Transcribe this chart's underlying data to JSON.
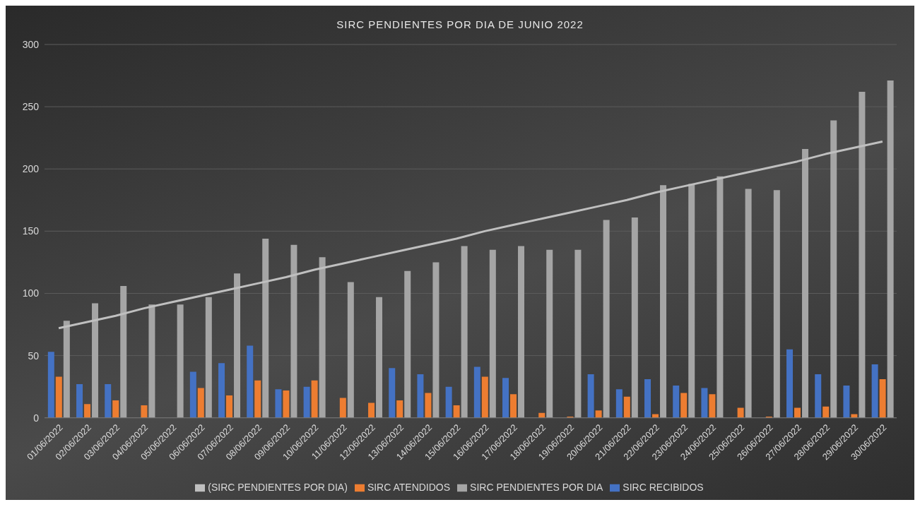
{
  "chart_data": {
    "type": "bar",
    "title": "SIRC PENDIENTES POR DIA DE JUNIO 2022",
    "categories": [
      "01/06/2022",
      "02/06/2022",
      "03/06/2022",
      "04/06/2022",
      "05/06/2022",
      "06/06/2022",
      "07/06/2022",
      "08/06/2022",
      "09/06/2022",
      "10/06/2022",
      "11/06/2022",
      "12/06/2022",
      "13/06/2022",
      "14/06/2022",
      "15/06/2022",
      "16/06/2022",
      "17/06/2022",
      "18/06/2022",
      "19/06/2022",
      "20/06/2022",
      "21/06/2022",
      "22/06/2022",
      "23/06/2022",
      "24/06/2022",
      "25/06/2022",
      "26/06/2022",
      "27/06/2022",
      "28/06/2022",
      "29/06/2022",
      "30/06/2022"
    ],
    "series": [
      {
        "name": "SIRC RECIBIDOS",
        "color": "#4472c4",
        "values": [
          53,
          27,
          27,
          0,
          0,
          37,
          44,
          58,
          23,
          25,
          0,
          0,
          40,
          35,
          25,
          41,
          32,
          0,
          0,
          35,
          23,
          31,
          26,
          24,
          0,
          0,
          55,
          35,
          26,
          43
        ]
      },
      {
        "name": "SIRC ATENDIDOS",
        "color": "#ed7d31",
        "values": [
          33,
          11,
          14,
          10,
          0,
          24,
          18,
          30,
          22,
          30,
          16,
          12,
          14,
          20,
          10,
          33,
          19,
          4,
          1,
          6,
          17,
          3,
          20,
          19,
          8,
          1,
          8,
          9,
          3,
          31
        ]
      },
      {
        "name": "SIRC PENDIENTES POR DIA",
        "color": "#a5a5a5",
        "values": [
          78,
          92,
          106,
          91,
          91,
          97,
          116,
          144,
          139,
          129,
          109,
          97,
          118,
          125,
          138,
          135,
          138,
          135,
          135,
          159,
          161,
          187,
          188,
          194,
          184,
          183,
          216,
          239,
          262,
          271
        ]
      },
      {
        "name": "(SIRC PENDIENTES POR DIA)",
        "type": "line",
        "color": "#bfbfbf",
        "values": [
          72,
          77,
          82,
          88,
          93,
          98,
          103,
          108,
          113,
          119,
          124,
          129,
          134,
          139,
          144,
          150,
          155,
          160,
          165,
          170,
          175,
          181,
          186,
          191,
          196,
          201,
          206,
          212,
          217,
          222
        ]
      }
    ],
    "ylim": [
      0,
      300
    ],
    "yticks": [
      0,
      50,
      100,
      150,
      200,
      250,
      300
    ],
    "grid": "y",
    "legend": "bottom",
    "marker": "none"
  }
}
